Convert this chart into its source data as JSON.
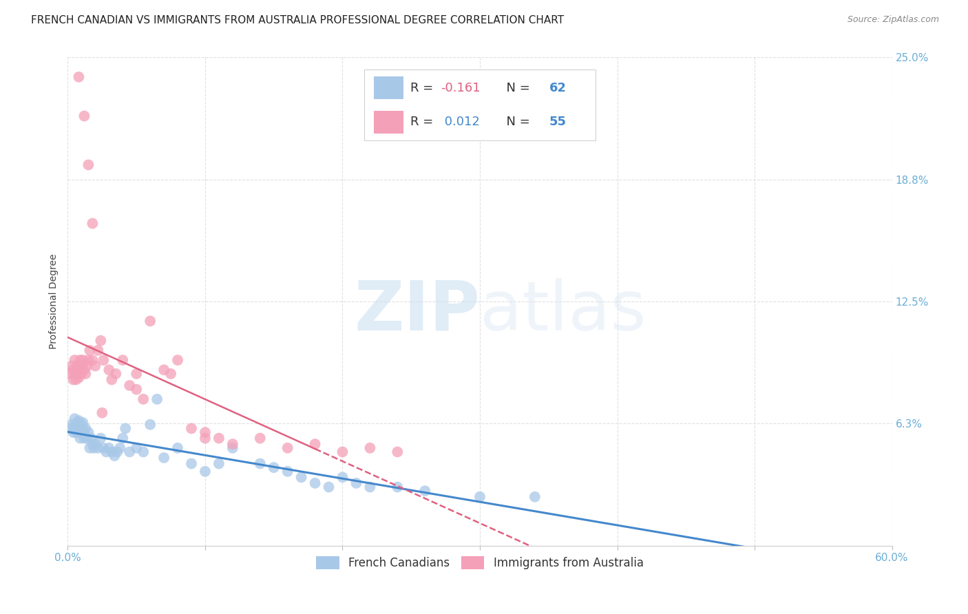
{
  "title": "FRENCH CANADIAN VS IMMIGRANTS FROM AUSTRALIA PROFESSIONAL DEGREE CORRELATION CHART",
  "source": "Source: ZipAtlas.com",
  "ylabel": "Professional Degree",
  "watermark": "ZIPatlas",
  "xlim": [
    0.0,
    0.6
  ],
  "ylim": [
    0.0,
    0.25
  ],
  "yticks": [
    0.0,
    0.0625,
    0.125,
    0.1875,
    0.25
  ],
  "ytick_labels": [
    "",
    "6.3%",
    "12.5%",
    "18.8%",
    "25.0%"
  ],
  "xticks": [
    0.0,
    0.1,
    0.2,
    0.3,
    0.4,
    0.5,
    0.6
  ],
  "xtick_labels": [
    "0.0%",
    "",
    "",
    "",
    "",
    "",
    "60.0%"
  ],
  "blue_color": "#a8c8e8",
  "pink_color": "#f4a0b8",
  "blue_line_color": "#4488cc",
  "pink_line_color": "#e06080",
  "background_color": "#ffffff",
  "grid_color": "#e0e0e0",
  "tick_color": "#6baed6",
  "title_fontsize": 11,
  "axis_label_fontsize": 10,
  "tick_fontsize": 11,
  "legend_fontsize": 13,
  "blue_scatter_x": [
    0.002,
    0.003,
    0.004,
    0.005,
    0.005,
    0.006,
    0.006,
    0.007,
    0.007,
    0.008,
    0.008,
    0.009,
    0.009,
    0.01,
    0.01,
    0.011,
    0.011,
    0.012,
    0.012,
    0.013,
    0.014,
    0.015,
    0.016,
    0.017,
    0.018,
    0.019,
    0.02,
    0.022,
    0.024,
    0.026,
    0.028,
    0.03,
    0.032,
    0.034,
    0.036,
    0.038,
    0.04,
    0.042,
    0.045,
    0.05,
    0.055,
    0.06,
    0.065,
    0.07,
    0.08,
    0.09,
    0.1,
    0.11,
    0.12,
    0.14,
    0.15,
    0.16,
    0.17,
    0.18,
    0.19,
    0.2,
    0.21,
    0.22,
    0.24,
    0.26,
    0.3,
    0.34
  ],
  "blue_scatter_y": [
    0.06,
    0.062,
    0.058,
    0.06,
    0.065,
    0.058,
    0.062,
    0.063,
    0.06,
    0.058,
    0.064,
    0.055,
    0.06,
    0.062,
    0.058,
    0.06,
    0.063,
    0.058,
    0.055,
    0.06,
    0.055,
    0.058,
    0.05,
    0.055,
    0.052,
    0.05,
    0.052,
    0.05,
    0.055,
    0.05,
    0.048,
    0.05,
    0.048,
    0.046,
    0.048,
    0.05,
    0.055,
    0.06,
    0.048,
    0.05,
    0.048,
    0.062,
    0.075,
    0.045,
    0.05,
    0.042,
    0.038,
    0.042,
    0.05,
    0.042,
    0.04,
    0.038,
    0.035,
    0.032,
    0.03,
    0.035,
    0.032,
    0.03,
    0.03,
    0.028,
    0.025,
    0.025
  ],
  "pink_scatter_x": [
    0.002,
    0.003,
    0.004,
    0.004,
    0.005,
    0.005,
    0.006,
    0.006,
    0.007,
    0.007,
    0.008,
    0.008,
    0.009,
    0.009,
    0.01,
    0.01,
    0.011,
    0.012,
    0.013,
    0.014,
    0.015,
    0.016,
    0.018,
    0.02,
    0.022,
    0.024,
    0.026,
    0.03,
    0.035,
    0.04,
    0.05,
    0.06,
    0.07,
    0.075,
    0.08,
    0.09,
    0.1,
    0.1,
    0.11,
    0.12,
    0.14,
    0.16,
    0.18,
    0.2,
    0.22,
    0.24,
    0.05,
    0.055,
    0.045,
    0.032,
    0.025,
    0.018,
    0.015,
    0.012,
    0.008
  ],
  "pink_scatter_y": [
    0.088,
    0.092,
    0.085,
    0.09,
    0.088,
    0.095,
    0.09,
    0.085,
    0.092,
    0.088,
    0.086,
    0.092,
    0.09,
    0.095,
    0.088,
    0.092,
    0.095,
    0.09,
    0.088,
    0.092,
    0.095,
    0.1,
    0.095,
    0.092,
    0.1,
    0.105,
    0.095,
    0.09,
    0.088,
    0.095,
    0.088,
    0.115,
    0.09,
    0.088,
    0.095,
    0.06,
    0.055,
    0.058,
    0.055,
    0.052,
    0.055,
    0.05,
    0.052,
    0.048,
    0.05,
    0.048,
    0.08,
    0.075,
    0.082,
    0.085,
    0.068,
    0.165,
    0.195,
    0.22,
    0.24
  ]
}
